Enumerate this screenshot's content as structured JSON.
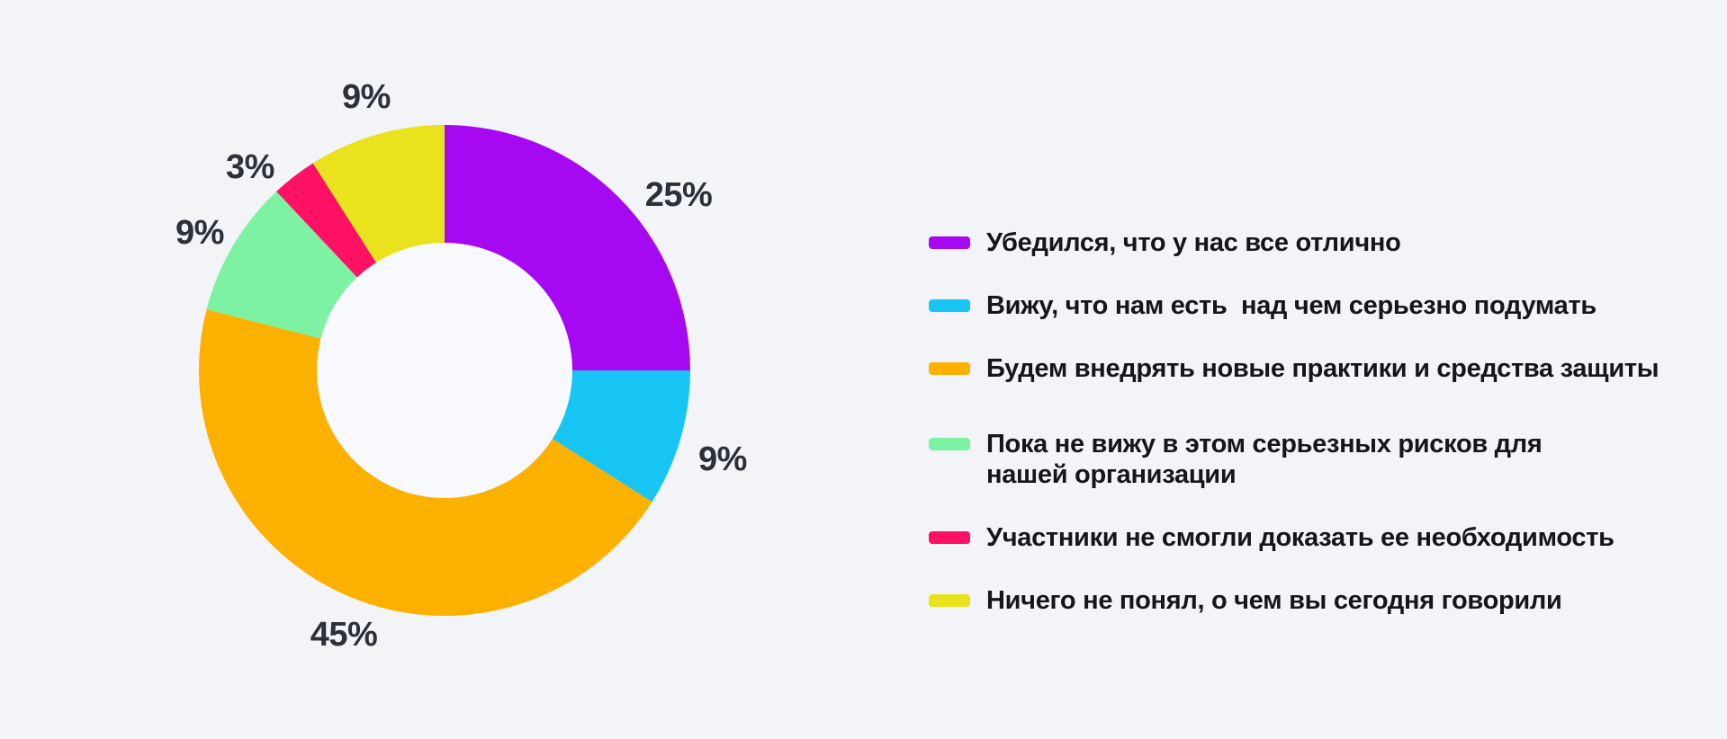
{
  "page": {
    "background_color": "#f3f4f8",
    "hole_color": "#f8f9fc",
    "percent_label_color": "#2d3039",
    "legend_text_color": "#14161b"
  },
  "chart_data": {
    "type": "pie",
    "subtype": "donut",
    "title": "",
    "start_angle_deg_from_top_clockwise": 0,
    "inner_radius_ratio": 0.52,
    "legend_position": "right",
    "grid": false,
    "categories": [
      "Убедился, что у нас все отлично",
      "Вижу, что нам есть  над чем серьезно подумать",
      "Будем внедрять новые практики и средства защиты",
      "Пока не вижу в этом серьезных рисков для нашей организации",
      "Участники не смогли доказать ее необходимость",
      "Ничего не понял, о чем вы сегодня говорили"
    ],
    "values": [
      25,
      9,
      45,
      9,
      3,
      9
    ],
    "slices": [
      {
        "label": "Убедился, что у нас все отлично",
        "legend_label": "Убедился, что у нас все отлично",
        "value": 25,
        "percent_label": "25%",
        "color": "#a609f1"
      },
      {
        "label": "Вижу, что нам есть  над чем серьезно подумать",
        "legend_label": "Вижу, что нам есть  над чем серьезно подумать",
        "value": 9,
        "percent_label": "9%",
        "color": "#16c5f3"
      },
      {
        "label": "Будем внедрять новые практики и средства защиты",
        "legend_label": "Будем внедрять новые практики и средства защиты",
        "value": 45,
        "percent_label": "45%",
        "color": "#fcb000"
      },
      {
        "label": "Пока не вижу в этом серьезных рисков для нашей организации",
        "legend_label": "Пока не вижу в этом серьезных рисков для\nнашей организации",
        "value": 9,
        "percent_label": "9%",
        "color": "#7df2a3"
      },
      {
        "label": "Участники не смогли доказать ее необходимость",
        "legend_label": "Участники не смогли доказать ее необходимость",
        "value": 3,
        "percent_label": "3%",
        "color": "#fc1164"
      },
      {
        "label": "Ничего не понял, о чем вы сегодня говорили",
        "legend_label": "Ничего не понял, о чем вы сегодня говорили",
        "value": 9,
        "percent_label": "9%",
        "color": "#e8e31c"
      }
    ]
  }
}
